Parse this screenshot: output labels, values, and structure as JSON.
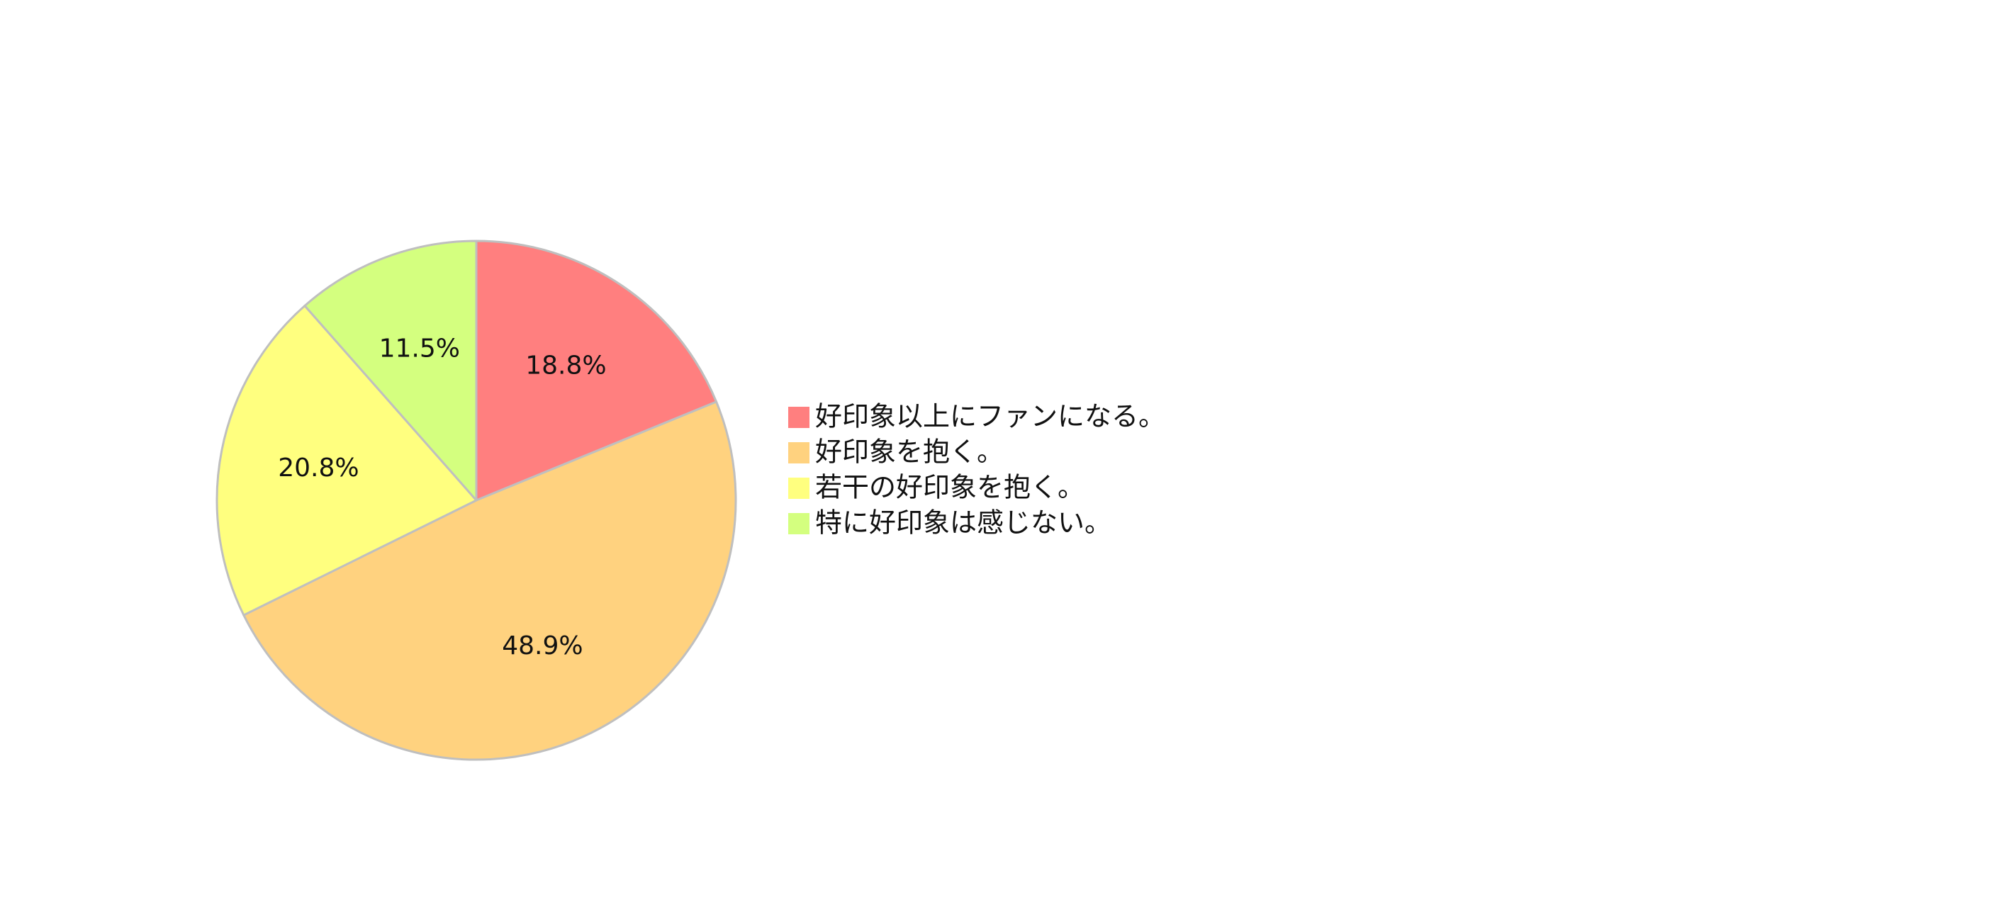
{
  "chart_data": {
    "type": "pie",
    "title": "",
    "categories": [
      "好印象以上にファンになる。",
      "好印象を抱く。",
      "若干の好印象を抱く。",
      "特に好印象は感じない。"
    ],
    "values": [
      18.8,
      48.9,
      20.8,
      11.5
    ],
    "value_labels": [
      "18.8%",
      "48.9%",
      "20.8%",
      "11.5%"
    ],
    "colors": [
      "#ff7f7f",
      "#ffd27f",
      "#ffff7f",
      "#d4ff7f"
    ],
    "edge_color": "#bfbfbf",
    "start_angle": "12 o'clock",
    "direction": "clockwise",
    "legend_placement": "right"
  }
}
